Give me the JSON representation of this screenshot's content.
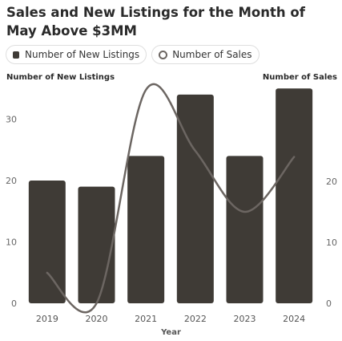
{
  "chart_data": {
    "type": "bar",
    "title": "Sales and New Listings for the Month of May Above $3MM",
    "xlabel": "Year",
    "ylabel": "Number of New Listings",
    "ylabel_right": "Number of Sales",
    "categories": [
      "2019",
      "2020",
      "2021",
      "2022",
      "2023",
      "2024"
    ],
    "series": [
      {
        "name": "Number of New Listings",
        "type": "bar",
        "axis": "left",
        "values": [
          20,
          19,
          24,
          34,
          24,
          35
        ]
      },
      {
        "name": "Number of Sales",
        "type": "line",
        "axis": "right",
        "values": [
          5,
          0,
          35,
          25,
          15,
          24
        ]
      }
    ],
    "ylim_left": [
      0,
      35
    ],
    "yticks_left": [
      0,
      10,
      20,
      30
    ],
    "ylim_right": [
      0,
      35
    ],
    "yticks_right": [
      0,
      10,
      20
    ],
    "grid": false,
    "legend_position": "top-left",
    "colors": {
      "bar": "#3f3b36",
      "line": "#6c6662"
    }
  }
}
